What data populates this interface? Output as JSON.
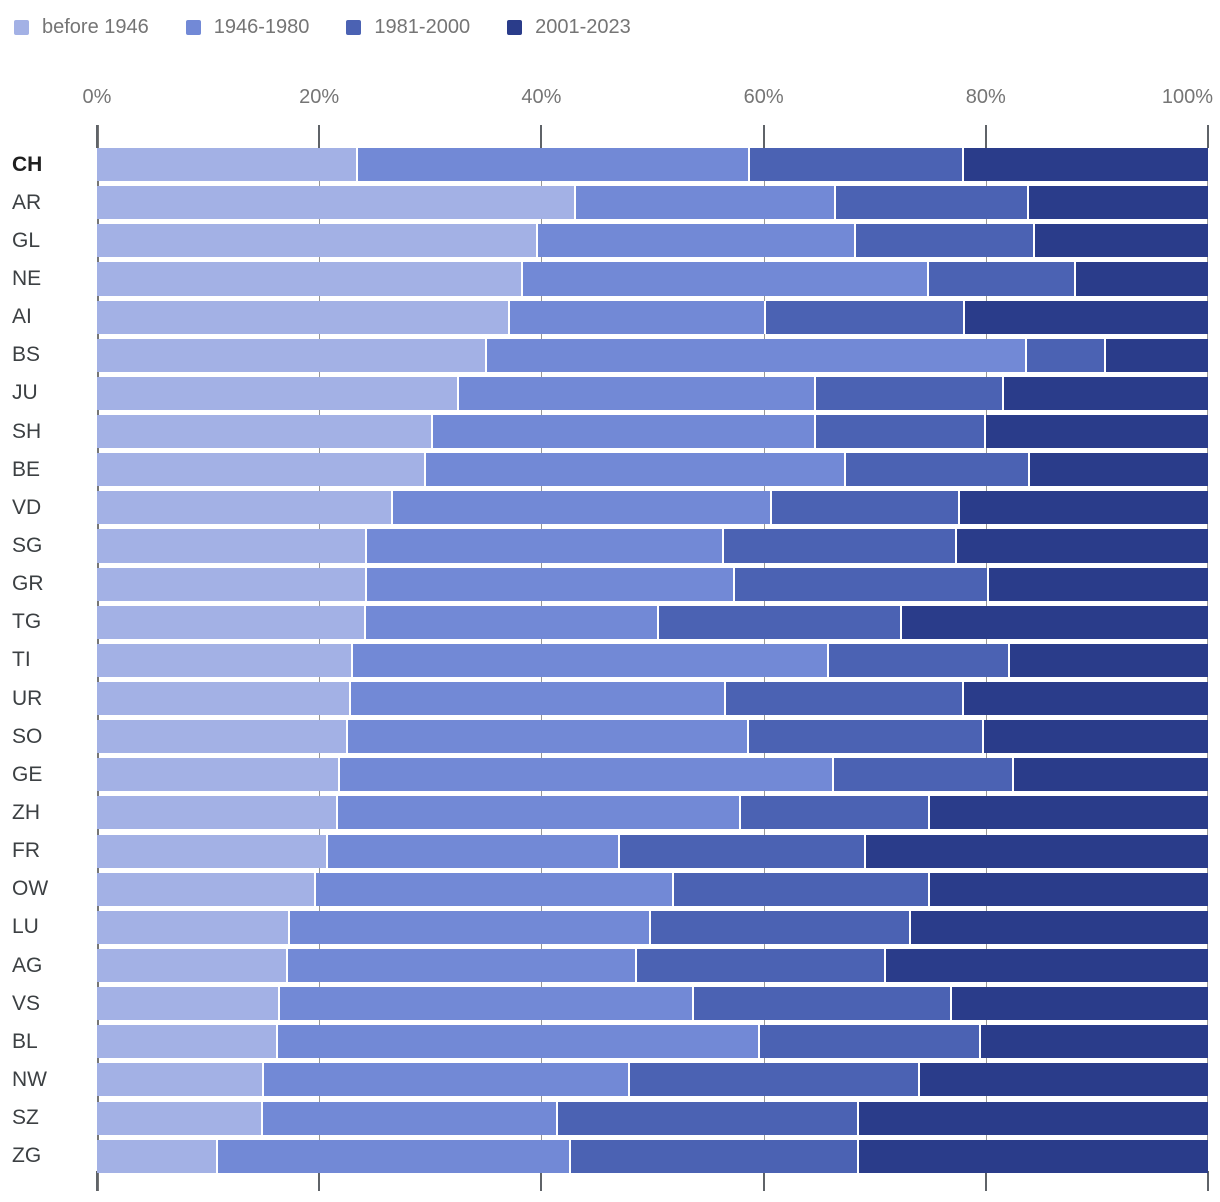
{
  "legend": {
    "items": [
      {
        "label": "before 1946",
        "color": "#a3b1e5"
      },
      {
        "label": "1946-1980",
        "color": "#7289d6"
      },
      {
        "label": "1981-2000",
        "color": "#4b62b3"
      },
      {
        "label": "2001-2023",
        "color": "#2a3c8a"
      }
    ]
  },
  "axis": {
    "ticks": [
      "0%",
      "20%",
      "40%",
      "60%",
      "80%",
      "100%"
    ],
    "min": 0,
    "max": 100
  },
  "chart_data": {
    "type": "bar",
    "stacked": true,
    "orientation": "horizontal",
    "unit": "percent",
    "xlim": [
      0,
      100
    ],
    "grid": true,
    "legend_position": "top-left",
    "bold_category": "CH",
    "categories": [
      "CH",
      "AR",
      "GL",
      "NE",
      "AI",
      "BS",
      "JU",
      "SH",
      "BE",
      "VD",
      "SG",
      "GR",
      "TG",
      "TI",
      "UR",
      "SO",
      "GE",
      "ZH",
      "FR",
      "OW",
      "LU",
      "AG",
      "VS",
      "BL",
      "NW",
      "SZ",
      "ZG"
    ],
    "series": [
      {
        "name": "before 1946",
        "color": "#a3b1e5",
        "values": [
          23.5,
          43.1,
          39.7,
          38.3,
          37.2,
          35.1,
          32.6,
          30.2,
          29.6,
          26.6,
          24.3,
          24.3,
          24.2,
          23.0,
          22.9,
          22.6,
          21.9,
          21.7,
          20.8,
          19.7,
          17.4,
          17.2,
          16.5,
          16.3,
          15.0,
          14.9,
          10.9
        ]
      },
      {
        "name": "1946-1980",
        "color": "#7289d6",
        "values": [
          35.3,
          23.4,
          28.6,
          36.6,
          23.0,
          48.6,
          32.1,
          34.5,
          37.8,
          34.2,
          32.1,
          33.1,
          26.4,
          42.9,
          33.7,
          36.1,
          44.4,
          36.3,
          26.3,
          32.2,
          32.5,
          31.4,
          37.2,
          43.4,
          33.0,
          26.6,
          31.8
        ]
      },
      {
        "name": "1981-2000",
        "color": "#4b62b3",
        "values": [
          19.2,
          17.4,
          16.1,
          13.2,
          17.9,
          7.1,
          16.9,
          15.3,
          16.6,
          16.9,
          21.0,
          22.9,
          21.9,
          16.3,
          21.4,
          21.1,
          16.2,
          17.0,
          22.1,
          23.1,
          23.4,
          22.4,
          23.3,
          19.9,
          26.1,
          27.1,
          25.9
        ]
      },
      {
        "name": "2001-2023",
        "color": "#2a3c8a",
        "values": [
          22.0,
          16.1,
          15.6,
          11.9,
          21.9,
          9.2,
          18.4,
          20.0,
          16.0,
          22.3,
          22.6,
          19.7,
          27.5,
          17.8,
          22.0,
          20.2,
          17.5,
          25.0,
          30.8,
          25.0,
          26.7,
          29.0,
          23.0,
          20.4,
          25.9,
          31.4,
          31.4
        ]
      }
    ]
  }
}
